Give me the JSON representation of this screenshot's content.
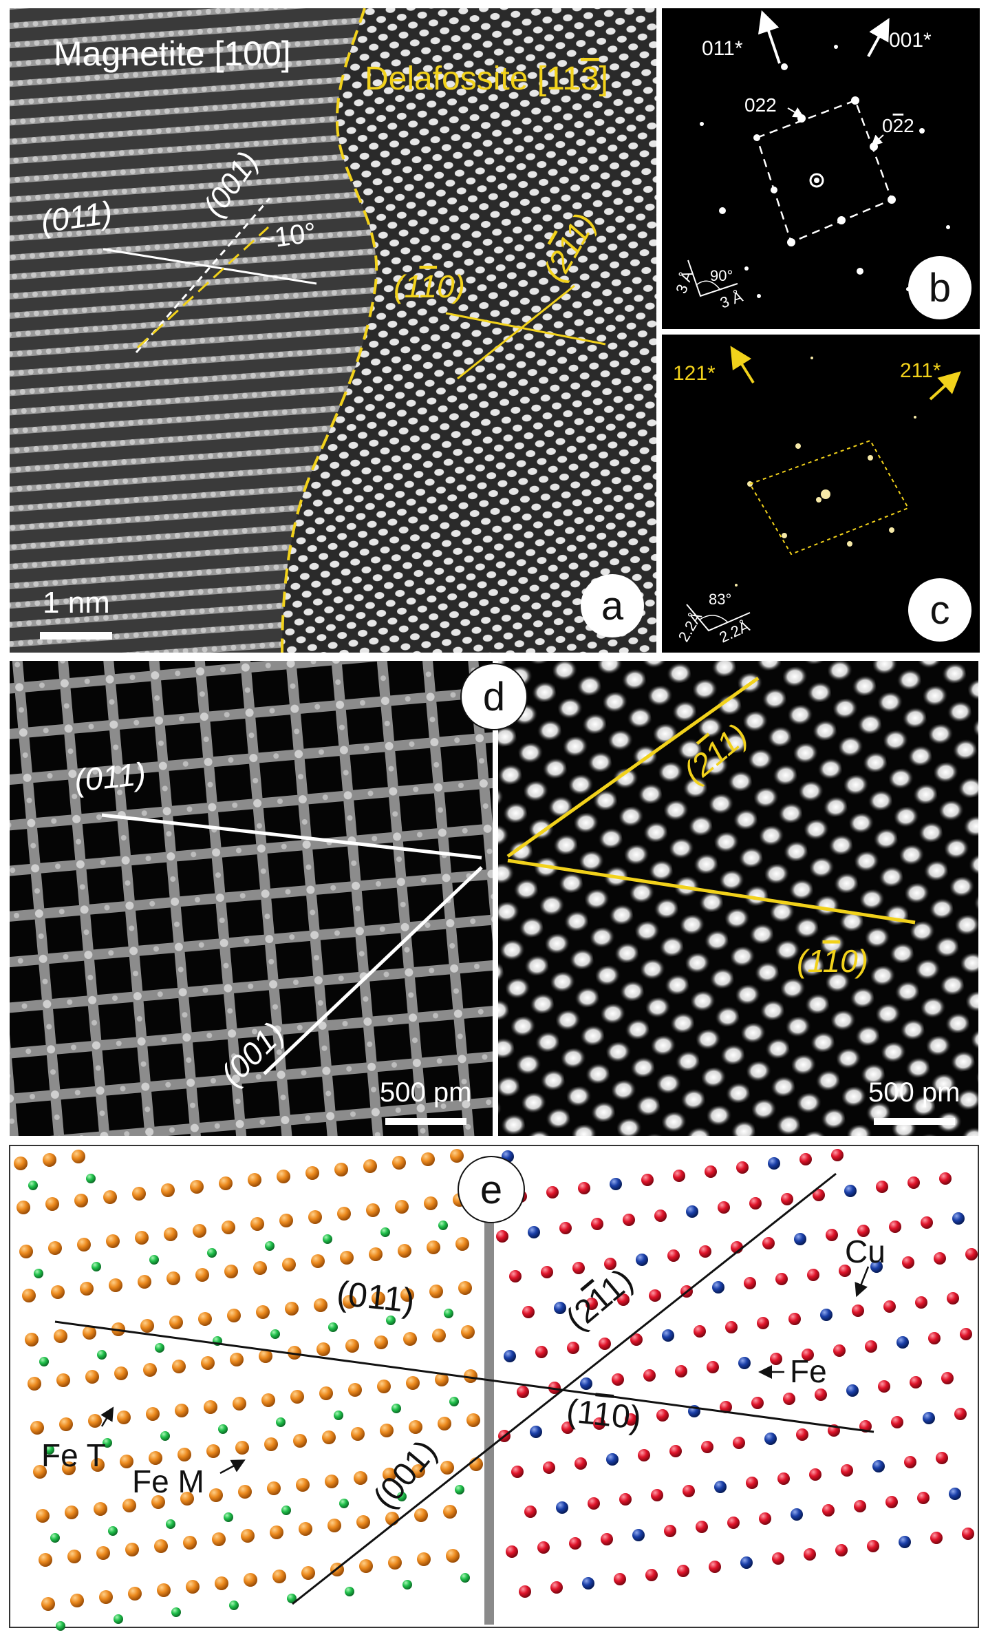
{
  "panel_a": {
    "label": "a",
    "title_left": "Magnetite [100]",
    "title_right": "Delafossite [11",
    "title_right_bar": "3",
    "title_right_end": "]",
    "plane_011": "(011)",
    "plane_001": "(001)",
    "angle": "~10°",
    "plane_1m10_pre": "(1",
    "plane_1m10_bar": "1",
    "plane_1m10_post": "0)",
    "plane_211_pre": "(2",
    "plane_211_bar": "1",
    "plane_211_post": "1)",
    "scale_label": "1 nm"
  },
  "panel_b": {
    "label": "b",
    "arrow_left": "011*",
    "arrow_right": "001*",
    "spot_022": "022",
    "spot_0m22_pre": "0",
    "spot_0m22_bar": "2",
    "spot_0m22_post": "2",
    "axis_a": "3 Å",
    "axis_b": "3 Å",
    "angle": "90°"
  },
  "panel_c": {
    "label": "c",
    "arrow_left": "121*",
    "arrow_right": "211*",
    "axis_a": "2.2Å",
    "axis_b": "2.2Å",
    "angle": "83°"
  },
  "panel_d": {
    "label": "d",
    "plane_011": "(011)",
    "plane_001": "(001)",
    "plane_211_pre": "(2",
    "plane_211_bar": "1",
    "plane_211_post": "1)",
    "plane_1m10_pre": "(1",
    "plane_1m10_bar": "1",
    "plane_1m10_post": "0)",
    "scale_left": "500 pm",
    "scale_right": "500 pm"
  },
  "panel_e": {
    "label": "e",
    "plane_011": "(011)",
    "plane_001": "(001)",
    "plane_211_pre": "(2",
    "plane_211_bar": "1",
    "plane_211_post": "1)",
    "plane_1m10_pre": "(1",
    "plane_1m10_bar": "1",
    "plane_1m10_post": "0)",
    "legend_cu": "Cu",
    "legend_fe": "Fe",
    "legend_fet": "Fe T",
    "legend_fem": "Fe M"
  },
  "colors": {
    "yellow": "#f2d21b",
    "white": "#ffffff",
    "orange": "#e8841e",
    "green": "#1fbf4a",
    "red": "#e0142a",
    "blue": "#123a9a",
    "boundary": "#8a8a8a"
  }
}
